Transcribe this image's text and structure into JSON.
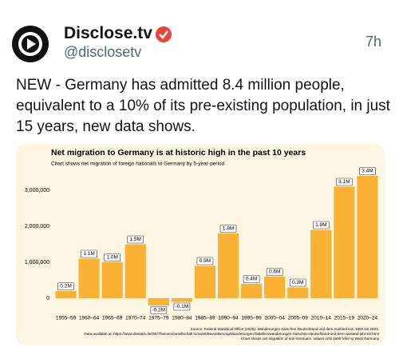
{
  "tweet": {
    "name": "Disclose.tv",
    "handle": "@disclosetv",
    "time": "7h",
    "text": "NEW - Germany has admitted 8.4 million people, equivalent to a 10% of its pre-existing population, in just 15 years, new data shows."
  },
  "chart_data": {
    "type": "bar",
    "title": "Net migration to Germany is at historic high in the past 10 years",
    "subtitle": "Chart shows net migration of foreign nationals to Germany by 5-year-period",
    "categories": [
      "1955–59",
      "1960–64",
      "1965–69",
      "1970–74",
      "1975–79",
      "1980–84",
      "1985–89",
      "1990–94",
      "1995–99",
      "2000–04",
      "2005–09",
      "2010–14",
      "2015–19",
      "2020–24"
    ],
    "values": [
      200000,
      1100000,
      1000000,
      1500000,
      -200000,
      -100000,
      900000,
      1800000,
      400000,
      600000,
      300000,
      1900000,
      3100000,
      3400000
    ],
    "value_labels": [
      "0.2M",
      "1.1M",
      "1.0M",
      "1.5M",
      "-0.2M",
      "-0.1M",
      "0.9M",
      "1.8M",
      "0.4M",
      "0.6M",
      "0.3M",
      "1.9M",
      "3.1M",
      "3.4M"
    ],
    "color": "#f9b233",
    "ylim": [
      -400000,
      3600000
    ],
    "yticks": [
      0,
      {
        "value": 1000000,
        "label": "1,000,000"
      },
      {
        "value": 2000000,
        "label": "2,000,000"
      },
      {
        "value": 3000000,
        "label": "3,000,000"
      }
    ],
    "grid": false,
    "notes": [
      "Source: Federal Statistical Office (2025): Wanderungen zwischen Deutschland und dem Ausland von 1950 bis 2023.",
      "Data available at: https://www.destatis.de/DE/Themen/Gesellschaft-Umwelt/Bevoelkerung/Wanderungen/Tabellen/wanderungen-zwischen-deutschland-und-dem-ausland-jahr-02.html",
      "Chart shows net migration of non-Germans. Values until 1990 refer to West Germany"
    ]
  }
}
